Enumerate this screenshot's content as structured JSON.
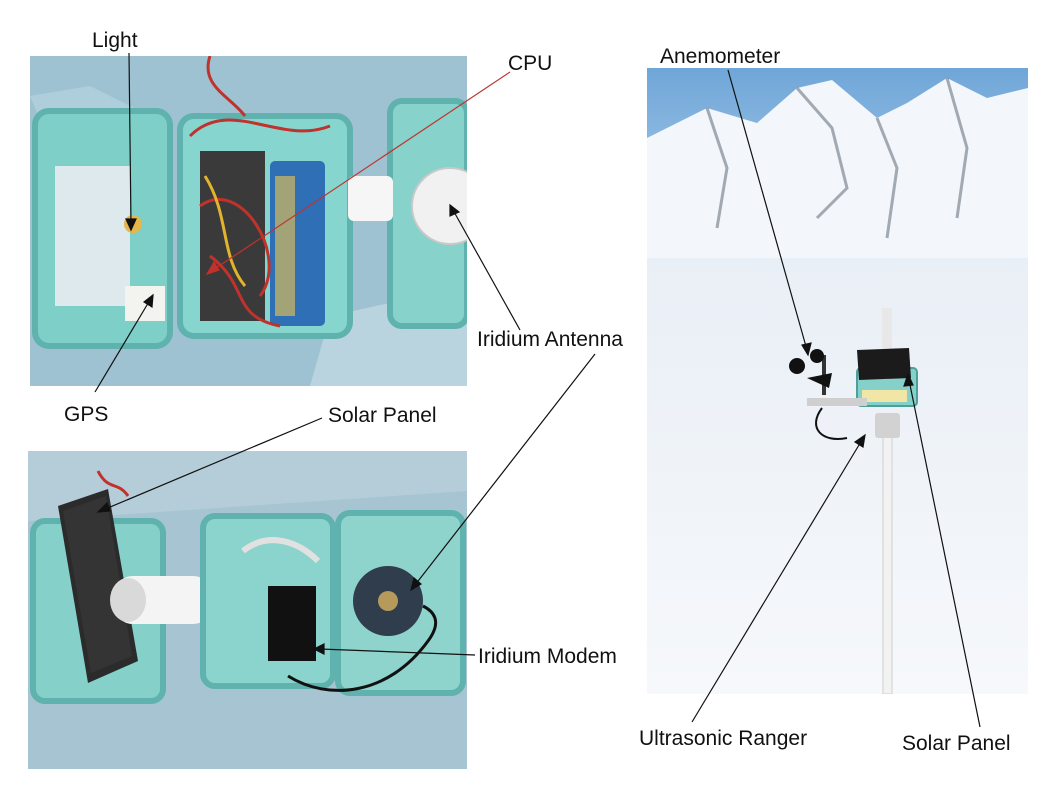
{
  "labels": {
    "light": "Light",
    "cpu": "CPU",
    "gps": "GPS",
    "iridium_antenna": "Iridium Antenna",
    "solar_panel_left": "Solar Panel",
    "iridium_modem": "Iridium Modem",
    "anemometer": "Anemometer",
    "ultrasonic_ranger": "Ultrasonic Ranger",
    "solar_panel_right": "Solar Panel"
  }
}
